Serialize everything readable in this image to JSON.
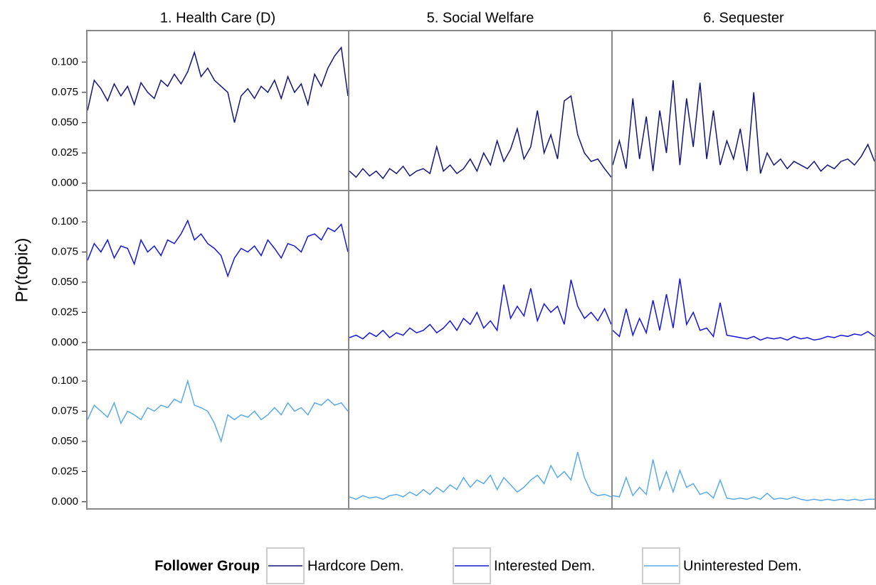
{
  "chart_data": {
    "type": "line",
    "ylabel": "Pr(topic)",
    "legend_title": "Follower Group",
    "columns": [
      "1. Health Care (D)",
      "5. Social Welfare",
      "6. Sequester"
    ],
    "ylim": [
      -0.006,
      0.126
    ],
    "yticks": [
      {
        "value": 0,
        "label": "0.000"
      },
      {
        "value": 0.025,
        "label": "0.025"
      },
      {
        "value": 0.05,
        "label": "0.050"
      },
      {
        "value": 0.075,
        "label": "0.075"
      },
      {
        "value": 0.1,
        "label": "0.100"
      }
    ],
    "series": [
      {
        "name": "Hardcore Dem.",
        "color": "#13137a",
        "values": [
          [
            0.06,
            0.085,
            0.078,
            0.068,
            0.082,
            0.072,
            0.08,
            0.065,
            0.083,
            0.075,
            0.07,
            0.085,
            0.08,
            0.09,
            0.082,
            0.092,
            0.108,
            0.088,
            0.095,
            0.085,
            0.08,
            0.075,
            0.05,
            0.072,
            0.078,
            0.07,
            0.08,
            0.075,
            0.085,
            0.07,
            0.088,
            0.075,
            0.082,
            0.065,
            0.09,
            0.08,
            0.095,
            0.105,
            0.112,
            0.072
          ],
          [
            0.01,
            0.005,
            0.012,
            0.006,
            0.01,
            0.004,
            0.012,
            0.008,
            0.014,
            0.006,
            0.01,
            0.012,
            0.008,
            0.03,
            0.01,
            0.015,
            0.008,
            0.012,
            0.02,
            0.01,
            0.025,
            0.015,
            0.035,
            0.018,
            0.028,
            0.045,
            0.02,
            0.03,
            0.06,
            0.025,
            0.04,
            0.02,
            0.068,
            0.072,
            0.04,
            0.025,
            0.018,
            0.02,
            0.012,
            0.005
          ],
          [
            0.015,
            0.035,
            0.012,
            0.07,
            0.02,
            0.055,
            0.01,
            0.06,
            0.025,
            0.085,
            0.015,
            0.07,
            0.03,
            0.083,
            0.02,
            0.06,
            0.015,
            0.035,
            0.02,
            0.045,
            0.01,
            0.075,
            0.008,
            0.025,
            0.015,
            0.02,
            0.012,
            0.018,
            0.015,
            0.012,
            0.018,
            0.01,
            0.015,
            0.012,
            0.018,
            0.02,
            0.015,
            0.022,
            0.032,
            0.018
          ]
        ]
      },
      {
        "name": "Interested Dem.",
        "color": "#1515d8",
        "values": [
          [
            0.068,
            0.082,
            0.075,
            0.085,
            0.07,
            0.08,
            0.078,
            0.065,
            0.085,
            0.075,
            0.08,
            0.072,
            0.085,
            0.082,
            0.09,
            0.101,
            0.085,
            0.09,
            0.082,
            0.078,
            0.072,
            0.055,
            0.07,
            0.078,
            0.075,
            0.08,
            0.072,
            0.085,
            0.078,
            0.07,
            0.082,
            0.08,
            0.075,
            0.088,
            0.09,
            0.085,
            0.095,
            0.092,
            0.098,
            0.075
          ],
          [
            0.004,
            0.006,
            0.003,
            0.008,
            0.005,
            0.01,
            0.004,
            0.008,
            0.006,
            0.012,
            0.008,
            0.01,
            0.015,
            0.008,
            0.012,
            0.018,
            0.01,
            0.02,
            0.015,
            0.025,
            0.012,
            0.018,
            0.01,
            0.048,
            0.02,
            0.03,
            0.022,
            0.045,
            0.018,
            0.032,
            0.025,
            0.03,
            0.015,
            0.052,
            0.03,
            0.02,
            0.025,
            0.018,
            0.028,
            0.015
          ],
          [
            0.01,
            0.005,
            0.028,
            0.006,
            0.02,
            0.008,
            0.035,
            0.01,
            0.04,
            0.012,
            0.053,
            0.015,
            0.025,
            0.01,
            0.012,
            0.005,
            0.033,
            0.006,
            0.005,
            0.004,
            0.003,
            0.005,
            0.002,
            0.004,
            0.003,
            0.004,
            0.002,
            0.005,
            0.003,
            0.004,
            0.002,
            0.003,
            0.005,
            0.004,
            0.006,
            0.005,
            0.007,
            0.006,
            0.009,
            0.005
          ]
        ]
      },
      {
        "name": "Uninterested Dem.",
        "color": "#5aaae6",
        "values": [
          [
            0.068,
            0.08,
            0.075,
            0.07,
            0.082,
            0.065,
            0.075,
            0.072,
            0.068,
            0.078,
            0.075,
            0.08,
            0.078,
            0.085,
            0.082,
            0.1,
            0.08,
            0.078,
            0.075,
            0.065,
            0.05,
            0.072,
            0.068,
            0.072,
            0.07,
            0.075,
            0.068,
            0.072,
            0.078,
            0.072,
            0.082,
            0.075,
            0.078,
            0.072,
            0.082,
            0.08,
            0.085,
            0.08,
            0.082,
            0.075
          ],
          [
            0.004,
            0.002,
            0.005,
            0.003,
            0.004,
            0.002,
            0.005,
            0.006,
            0.004,
            0.008,
            0.005,
            0.01,
            0.006,
            0.012,
            0.008,
            0.014,
            0.01,
            0.02,
            0.012,
            0.018,
            0.015,
            0.022,
            0.01,
            0.02,
            0.014,
            0.008,
            0.012,
            0.018,
            0.022,
            0.015,
            0.03,
            0.02,
            0.025,
            0.018,
            0.041,
            0.02,
            0.008,
            0.005,
            0.006,
            0.004
          ],
          [
            0.005,
            0.004,
            0.02,
            0.005,
            0.012,
            0.006,
            0.035,
            0.01,
            0.025,
            0.008,
            0.026,
            0.012,
            0.015,
            0.006,
            0.008,
            0.003,
            0.018,
            0.003,
            0.002,
            0.003,
            0.002,
            0.004,
            0.002,
            0.007,
            0.002,
            0.003,
            0.002,
            0.004,
            0.002,
            0.001,
            0.002,
            0.001,
            0.002,
            0.001,
            0.002,
            0.001,
            0.002,
            0.001,
            0.002,
            0.002
          ]
        ]
      }
    ]
  }
}
